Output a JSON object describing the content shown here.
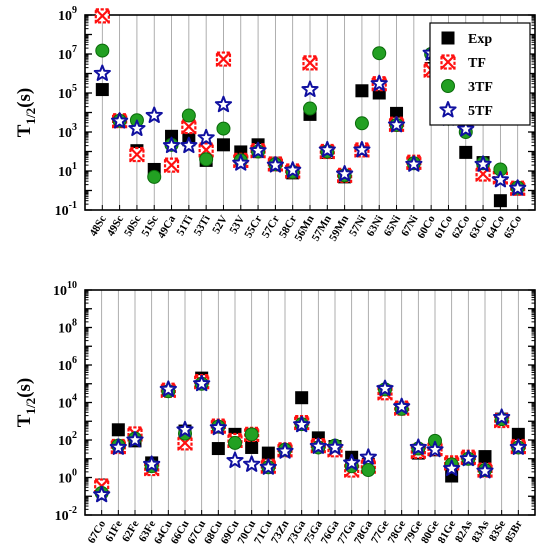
{
  "chart_data": [
    {
      "type": "scatter",
      "ylabel": "T1/2(s)",
      "yscale": "log",
      "ylim_exp": [
        -1,
        9
      ],
      "yticks": [
        {
          "exp": -1,
          "base": "10",
          "sup": "-1"
        },
        {
          "exp": 1,
          "base": "10",
          "sup": "1"
        },
        {
          "exp": 3,
          "base": "10",
          "sup": "3"
        },
        {
          "exp": 5,
          "base": "10",
          "sup": "5"
        },
        {
          "exp": 7,
          "base": "10",
          "sup": "7"
        },
        {
          "exp": 9,
          "base": "10",
          "sup": "9"
        }
      ],
      "legend_position": "top-right",
      "legend": [
        "Exp",
        "TF",
        "3TF",
        "5TF"
      ],
      "categories": [
        "48Sc",
        "49Sc",
        "50Sc",
        "51Sc",
        "49Ca",
        "51Ti",
        "53Ti",
        "52V",
        "53V",
        "55Cr",
        "57Cr",
        "58Cr",
        "56Mn",
        "57Mn",
        "59Mn",
        "57Ni",
        "63Ni",
        "65Ni",
        "67Ni",
        "60Co",
        "61Co",
        "62Co",
        "63Co",
        "64Co",
        "65Co"
      ],
      "series": [
        {
          "name": "Exp",
          "values": [
            150000,
            3700,
            110,
            12,
            600,
            400,
            35,
            220,
            95,
            220,
            25,
            8,
            8000,
            90,
            5,
            130000,
            100000,
            9000,
            25,
            1800000,
            5500,
            90,
            27,
            0.3,
            1.2
          ]
        },
        {
          "name": "TF",
          "values": [
            900000000,
            3800,
            70,
            null,
            20,
            1900,
            120,
            5500000,
            35,
            110,
            23,
            10,
            3500000,
            100,
            6,
            120,
            300000,
            2500,
            28,
            1500000,
            5800,
            3800,
            7,
            5,
            1.3
          ]
        },
        {
          "name": "3TF",
          "values": [
            15000000,
            3800,
            4000,
            5,
            220,
            7000,
            40,
            1500,
            35,
            100,
            22,
            9,
            16000,
            100,
            6,
            2800,
            11000000,
            2300,
            25,
            10000000,
            4800,
            1000,
            25,
            12,
            1.4
          ]
        },
        {
          "name": "5TF",
          "values": [
            1000000,
            3600,
            1500,
            7000,
            200,
            200,
            500,
            25000,
            25,
            110,
            20,
            11,
            150000,
            120,
            7,
            120,
            300000,
            2300,
            22,
            11000000,
            5000,
            1400,
            22,
            3.5,
            1.3
          ]
        }
      ]
    },
    {
      "type": "scatter",
      "ylabel": "T1/2(s)",
      "yscale": "log",
      "ylim_exp": [
        -2,
        10
      ],
      "yticks": [
        {
          "exp": -2,
          "base": "10",
          "sup": "-2"
        },
        {
          "exp": 0,
          "base": "10",
          "sup": "0"
        },
        {
          "exp": 2,
          "base": "10",
          "sup": "2"
        },
        {
          "exp": 4,
          "base": "10",
          "sup": "4"
        },
        {
          "exp": 6,
          "base": "10",
          "sup": "6"
        },
        {
          "exp": 8,
          "base": "10",
          "sup": "8"
        },
        {
          "exp": 10,
          "base": "10",
          "sup": "10"
        }
      ],
      "categories": [
        "67Co",
        "61Fe",
        "62Fe",
        "63Fe",
        "64Cu",
        "66Cu",
        "67Cu",
        "68Cu",
        "69Cu",
        "70Cu",
        "71Cu",
        "73Zn",
        "73Ga",
        "75Ga",
        "76Ga",
        "77Ga",
        "78Ga",
        "77Ge",
        "78Ge",
        "79Ge",
        "80Ge",
        "81Ge",
        "82As",
        "83As",
        "83Se",
        "85Br"
      ],
      "series": [
        {
          "name": "Exp",
          "values": [
            0.4,
            350,
            90,
            6,
            45000,
            300,
            200000,
            35,
            200,
            40,
            20,
            30,
            18000,
            130,
            45,
            12,
            5,
            40000,
            5200,
            20,
            30,
            1.2,
            10,
            13,
            1300,
            200
          ]
        },
        {
          "name": "TF",
          "values": [
            0.35,
            45,
            210,
            3,
            45000,
            70,
            130000,
            550,
            95,
            200,
            4,
            30,
            850,
            50,
            30,
            2.5,
            4,
            33000,
            5000,
            25,
            35,
            6,
            12,
            2.5,
            1100,
            45
          ]
        },
        {
          "name": "3TF",
          "values": [
            0.15,
            50,
            120,
            4,
            40000,
            220,
            100000,
            520,
            70,
            200,
            3.5,
            30,
            700,
            40,
            50,
            4,
            2.5,
            50000,
            4600,
            35,
            90,
            5,
            10,
            2.5,
            1300,
            40
          ]
        },
        {
          "name": "5TF",
          "values": [
            0.12,
            40,
            100,
            5,
            50000,
            350,
            100000,
            450,
            8,
            5,
            3.5,
            25,
            650,
            45,
            40,
            6,
            12,
            55000,
            6000,
            40,
            30,
            3,
            10,
            2.2,
            1600,
            40
          ]
        }
      ]
    }
  ],
  "styles": {
    "Exp": {
      "shape": "square",
      "fill": "#000000",
      "stroke": "#000000"
    },
    "TF": {
      "shape": "crossbox",
      "fill": "#ffffff",
      "stroke": "#ff1010"
    },
    "3TF": {
      "shape": "circle",
      "fill": "#22a022",
      "stroke": "#0a6a0a"
    },
    "5TF": {
      "shape": "star",
      "fill": "#ffffff",
      "stroke": "#1010a0"
    }
  }
}
